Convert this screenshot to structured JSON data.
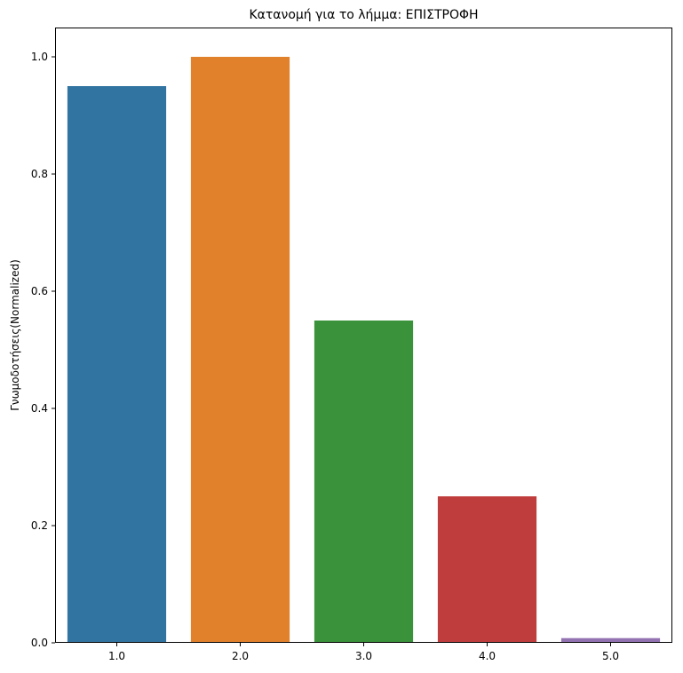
{
  "chart_data": {
    "type": "bar",
    "title": "Κατανομή για το λήμμα: ΕΠΙΣΤΡΟΦΗ",
    "xlabel": "",
    "ylabel": "Γνωμοδοτήσεις(Normalized)",
    "categories": [
      "1.0",
      "2.0",
      "3.0",
      "4.0",
      "5.0"
    ],
    "values": [
      0.95,
      1.0,
      0.55,
      0.25,
      0.008
    ],
    "colors": [
      "#3274a1",
      "#e1812c",
      "#3a923a",
      "#c03d3e",
      "#9372b2"
    ],
    "ylim": [
      0,
      1.05
    ],
    "yticks": [
      "0.0",
      "0.2",
      "0.4",
      "0.6",
      "0.8",
      "1.0"
    ],
    "grid": false,
    "legend": "none"
  }
}
